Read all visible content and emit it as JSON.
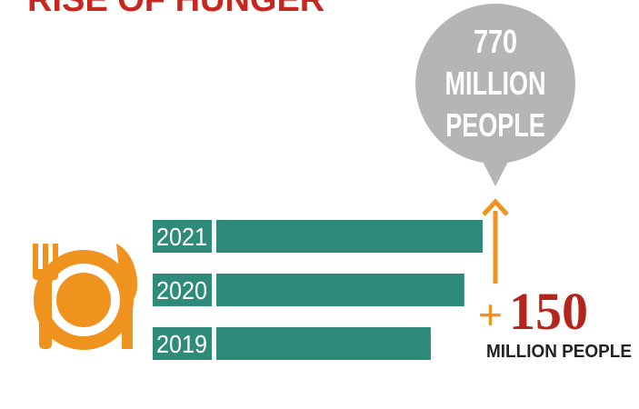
{
  "chart_data": {
    "type": "bar",
    "orientation": "horizontal",
    "title": "RISE OF HUNGER",
    "categories": [
      "2021",
      "2020",
      "2019"
    ],
    "values": [
      770,
      717,
      620
    ],
    "color": "#2e8b7a",
    "xlim": [
      0,
      770
    ],
    "bubble_lines": [
      "770",
      "MILLION",
      "PEOPLE"
    ],
    "increase_sign": "+",
    "increase": "150",
    "increase_unit": "MILLION PEOPLE"
  }
}
